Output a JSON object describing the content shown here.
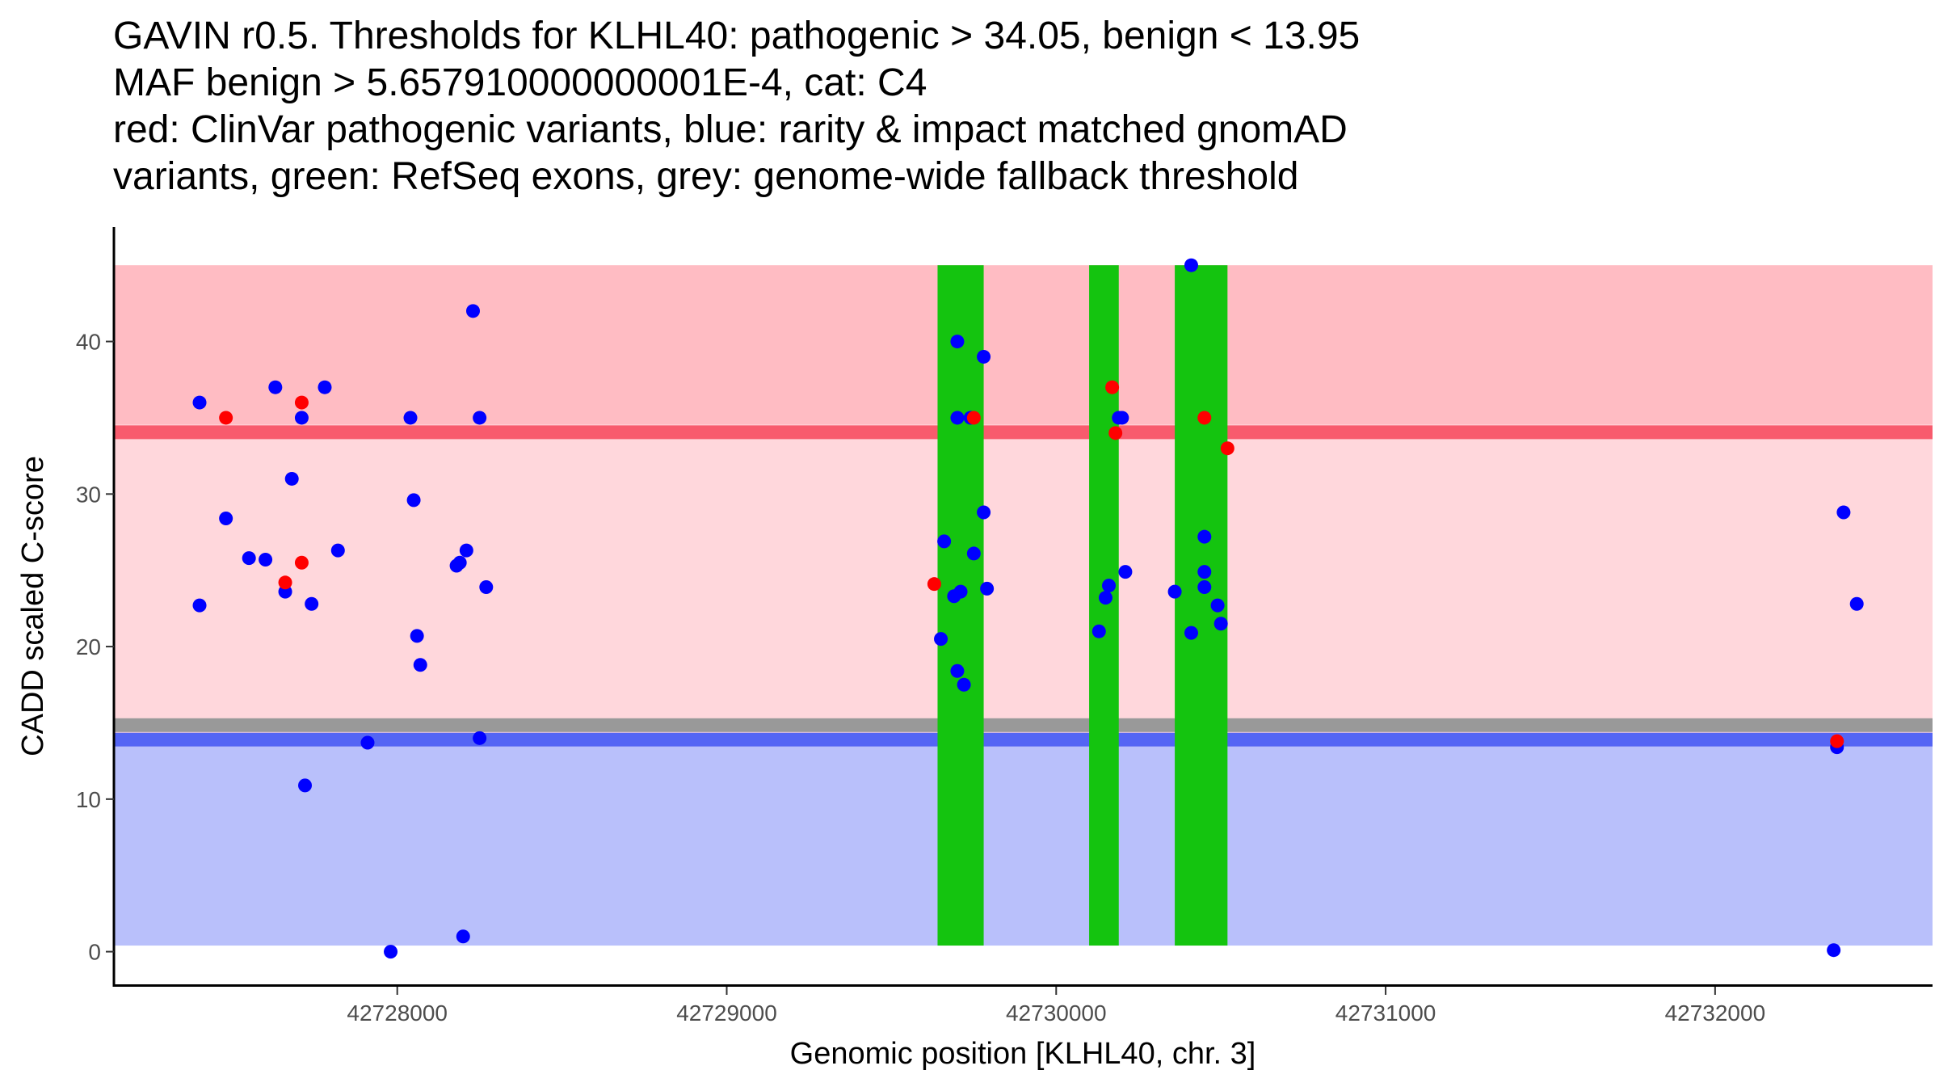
{
  "chart_data": {
    "type": "scatter",
    "title_lines": [
      "GAVIN r0.5. Thresholds for KLHL40: pathogenic > 34.05, benign < 13.95",
      "MAF benign > 5.657910000000001E-4, cat: C4",
      "red: ClinVar pathogenic variants, blue: rarity & impact matched gnomAD",
      "variants, green: RefSeq exons, grey: genome-wide fallback threshold"
    ],
    "xlabel": "Genomic position [KLHL40, chr. 3]",
    "ylabel": "CADD scaled C-score",
    "xlim": [
      42727140,
      42732660
    ],
    "ylim": [
      -2.3,
      47.5
    ],
    "x_ticks": [
      42728000,
      42729000,
      42730000,
      42731000,
      42732000
    ],
    "x_tick_labels": [
      "42728000",
      "42729000",
      "42730000",
      "42731000",
      "42732000"
    ],
    "y_ticks": [
      0,
      10,
      20,
      30,
      40
    ],
    "y_tick_labels": [
      "0",
      "10",
      "20",
      "30",
      "40"
    ],
    "colors": {
      "pathogenic_zone": "#ffbcc3",
      "intermediate_zone": "#ffd7dc",
      "benign_zone": "#b9c0fb",
      "pathogenic_line": "#f85b6d",
      "benign_line": "#5465f4",
      "fallback_line": "#999999",
      "exon": "#14c40f",
      "clinvar_point": "#ff0000",
      "gnomad_point": "#0000ff",
      "axis": "#000000"
    },
    "regions": {
      "plot_xmin": 42727140,
      "plot_xmax": 42732660,
      "benign_zone": [
        0.4,
        13.45
      ],
      "intermediate_zone": [
        13.45,
        34.55
      ],
      "pathogenic_zone": [
        34.55,
        45.0
      ],
      "benign_threshold_band": [
        13.45,
        14.35
      ],
      "fallback_threshold_band": [
        14.4,
        15.3
      ],
      "pathogenic_threshold_band": [
        33.6,
        34.5
      ]
    },
    "exons": [
      {
        "start": 42729640,
        "end": 42729780
      },
      {
        "start": 42730100,
        "end": 42730190
      },
      {
        "start": 42730360,
        "end": 42730520
      }
    ],
    "clinvar_pathogenic": [
      {
        "x": 42727480,
        "y": 35.0
      },
      {
        "x": 42727710,
        "y": 36.0
      },
      {
        "x": 42727660,
        "y": 24.2
      },
      {
        "x": 42727710,
        "y": 25.5
      },
      {
        "x": 42729630,
        "y": 24.1
      },
      {
        "x": 42729750,
        "y": 35.0
      },
      {
        "x": 42730170,
        "y": 37.0
      },
      {
        "x": 42730180,
        "y": 34.0
      },
      {
        "x": 42730450,
        "y": 35.0
      },
      {
        "x": 42730520,
        "y": 33.0
      },
      {
        "x": 42732370,
        "y": 13.8
      }
    ],
    "gnomad_matched": [
      {
        "x": 42727400,
        "y": 36.0
      },
      {
        "x": 42727400,
        "y": 22.7
      },
      {
        "x": 42727480,
        "y": 28.4
      },
      {
        "x": 42727550,
        "y": 25.8
      },
      {
        "x": 42727600,
        "y": 25.7
      },
      {
        "x": 42727630,
        "y": 37.0
      },
      {
        "x": 42727660,
        "y": 23.6
      },
      {
        "x": 42727680,
        "y": 31.0
      },
      {
        "x": 42727710,
        "y": 35.0
      },
      {
        "x": 42727720,
        "y": 10.9
      },
      {
        "x": 42727740,
        "y": 22.8
      },
      {
        "x": 42727780,
        "y": 37.0
      },
      {
        "x": 42727820,
        "y": 26.3
      },
      {
        "x": 42727910,
        "y": 13.7
      },
      {
        "x": 42727980,
        "y": 0.0
      },
      {
        "x": 42728040,
        "y": 35.0
      },
      {
        "x": 42728050,
        "y": 29.6
      },
      {
        "x": 42728060,
        "y": 20.7
      },
      {
        "x": 42728070,
        "y": 18.8
      },
      {
        "x": 42728180,
        "y": 25.3
      },
      {
        "x": 42728190,
        "y": 25.5
      },
      {
        "x": 42728210,
        "y": 26.3
      },
      {
        "x": 42728200,
        "y": 1.0
      },
      {
        "x": 42728230,
        "y": 42.0
      },
      {
        "x": 42728250,
        "y": 35.0
      },
      {
        "x": 42728250,
        "y": 14.0
      },
      {
        "x": 42728270,
        "y": 23.9
      },
      {
        "x": 42729650,
        "y": 20.5
      },
      {
        "x": 42729660,
        "y": 26.9
      },
      {
        "x": 42729690,
        "y": 23.3
      },
      {
        "x": 42729700,
        "y": 40.0
      },
      {
        "x": 42729700,
        "y": 35.0
      },
      {
        "x": 42729700,
        "y": 18.4
      },
      {
        "x": 42729710,
        "y": 23.6
      },
      {
        "x": 42729720,
        "y": 17.5
      },
      {
        "x": 42729740,
        "y": 35.0
      },
      {
        "x": 42729750,
        "y": 26.1
      },
      {
        "x": 42729780,
        "y": 39.0
      },
      {
        "x": 42729780,
        "y": 28.8
      },
      {
        "x": 42729790,
        "y": 23.8
      },
      {
        "x": 42730130,
        "y": 21.0
      },
      {
        "x": 42730150,
        "y": 23.2
      },
      {
        "x": 42730160,
        "y": 24.0
      },
      {
        "x": 42730190,
        "y": 35.0
      },
      {
        "x": 42730200,
        "y": 35.0
      },
      {
        "x": 42730210,
        "y": 24.9
      },
      {
        "x": 42730360,
        "y": 23.6
      },
      {
        "x": 42730410,
        "y": 45.0
      },
      {
        "x": 42730410,
        "y": 20.9
      },
      {
        "x": 42730450,
        "y": 27.2
      },
      {
        "x": 42730450,
        "y": 24.9
      },
      {
        "x": 42730450,
        "y": 23.9
      },
      {
        "x": 42730490,
        "y": 22.7
      },
      {
        "x": 42730500,
        "y": 21.5
      },
      {
        "x": 42732360,
        "y": 0.1
      },
      {
        "x": 42732370,
        "y": 13.4
      },
      {
        "x": 42732390,
        "y": 28.8
      },
      {
        "x": 42732430,
        "y": 22.8
      }
    ]
  }
}
